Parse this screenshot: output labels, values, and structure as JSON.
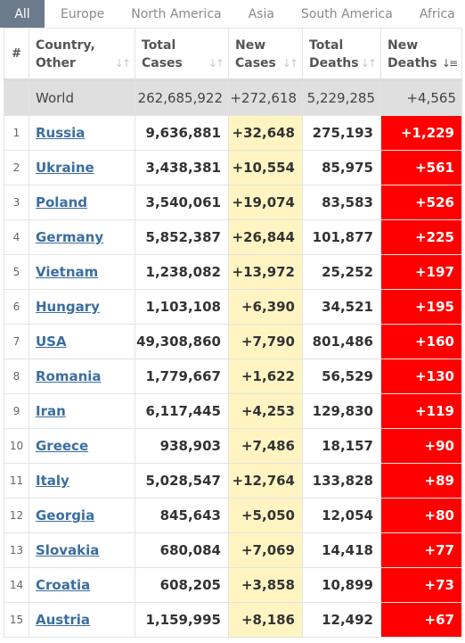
{
  "tabs": [
    "All",
    "Europe",
    "North America",
    "Asia",
    "South America",
    "Africa"
  ],
  "headers": {
    "index": "#",
    "country": [
      "Country,",
      "Other"
    ],
    "total_cases": [
      "Total",
      "Cases"
    ],
    "new_cases": [
      "New",
      "Cases"
    ],
    "total_deaths": [
      "Total",
      "Deaths"
    ],
    "new_deaths": [
      "New",
      "Deaths"
    ]
  },
  "world": {
    "name": "World",
    "total_cases": "262,685,922",
    "new_cases": "+272,618",
    "total_deaths": "5,229,285",
    "new_deaths": "+4,565"
  },
  "rows": [
    {
      "index": "1",
      "country": "Russia",
      "total_cases": "9,636,881",
      "new_cases": "+32,648",
      "total_deaths": "275,193",
      "new_deaths": "+1,229"
    },
    {
      "index": "2",
      "country": "Ukraine",
      "total_cases": "3,438,381",
      "new_cases": "+10,554",
      "total_deaths": "85,975",
      "new_deaths": "+561"
    },
    {
      "index": "3",
      "country": "Poland",
      "total_cases": "3,540,061",
      "new_cases": "+19,074",
      "total_deaths": "83,583",
      "new_deaths": "+526"
    },
    {
      "index": "4",
      "country": "Germany",
      "total_cases": "5,852,387",
      "new_cases": "+26,844",
      "total_deaths": "101,877",
      "new_deaths": "+225"
    },
    {
      "index": "5",
      "country": "Vietnam",
      "total_cases": "1,238,082",
      "new_cases": "+13,972",
      "total_deaths": "25,252",
      "new_deaths": "+197"
    },
    {
      "index": "6",
      "country": "Hungary",
      "total_cases": "1,103,108",
      "new_cases": "+6,390",
      "total_deaths": "34,521",
      "new_deaths": "+195"
    },
    {
      "index": "7",
      "country": "USA",
      "total_cases": "49,308,860",
      "new_cases": "+7,790",
      "total_deaths": "801,486",
      "new_deaths": "+160"
    },
    {
      "index": "8",
      "country": "Romania",
      "total_cases": "1,779,667",
      "new_cases": "+1,622",
      "total_deaths": "56,529",
      "new_deaths": "+130"
    },
    {
      "index": "9",
      "country": "Iran",
      "total_cases": "6,117,445",
      "new_cases": "+4,253",
      "total_deaths": "129,830",
      "new_deaths": "+119"
    },
    {
      "index": "10",
      "country": "Greece",
      "total_cases": "938,903",
      "new_cases": "+7,486",
      "total_deaths": "18,157",
      "new_deaths": "+90"
    },
    {
      "index": "11",
      "country": "Italy",
      "total_cases": "5,028,547",
      "new_cases": "+12,764",
      "total_deaths": "133,828",
      "new_deaths": "+89"
    },
    {
      "index": "12",
      "country": "Georgia",
      "total_cases": "845,643",
      "new_cases": "+5,050",
      "total_deaths": "12,054",
      "new_deaths": "+80"
    },
    {
      "index": "13",
      "country": "Slovakia",
      "total_cases": "680,084",
      "new_cases": "+7,069",
      "total_deaths": "14,418",
      "new_deaths": "+77"
    },
    {
      "index": "14",
      "country": "Croatia",
      "total_cases": "608,205",
      "new_cases": "+3,858",
      "total_deaths": "10,899",
      "new_deaths": "+73"
    },
    {
      "index": "15",
      "country": "Austria",
      "total_cases": "1,159,995",
      "new_cases": "+8,186",
      "total_deaths": "12,492",
      "new_deaths": "+67"
    }
  ],
  "colors": {
    "tab_active_bg": "#6b7b8c",
    "new_cases_bg": "#fff4c2",
    "new_deaths_bg": "#ff0000",
    "world_row_bg": "#dfdfdf",
    "link": "#3b6e9e"
  },
  "sort": {
    "column": "new_deaths",
    "direction": "descending"
  }
}
